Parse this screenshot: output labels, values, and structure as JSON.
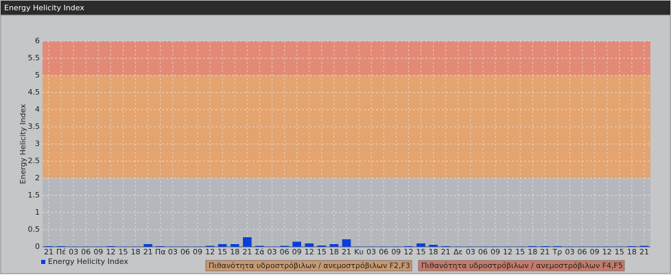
{
  "chart_data": {
    "type": "bar",
    "title": "Energy Helicity Index",
    "y_label": "Energy Helicity Index",
    "categories": [
      "21",
      "Πέ",
      "03",
      "06",
      "09",
      "12",
      "15",
      "18",
      "21",
      "Πα",
      "03",
      "06",
      "09",
      "12",
      "15",
      "18",
      "21",
      "Σά",
      "03",
      "06",
      "09",
      "12",
      "15",
      "18",
      "21",
      "Κυ",
      "03",
      "06",
      "09",
      "12",
      "15",
      "18",
      "21",
      "Δε",
      "03",
      "06",
      "09",
      "12",
      "15",
      "18",
      "21",
      "Τρ",
      "03",
      "06",
      "09",
      "12",
      "15",
      "18",
      "21"
    ],
    "series": [
      {
        "name": "Energy Helicity Index",
        "color": "#0a3fd6",
        "values": [
          0.02,
          0.02,
          0.01,
          0.01,
          0.01,
          0.02,
          0.01,
          0.01,
          0.08,
          0.02,
          0.01,
          0.01,
          0.01,
          0.03,
          0.08,
          0.08,
          0.28,
          0.03,
          0.01,
          0.03,
          0.15,
          0.1,
          0.04,
          0.08,
          0.22,
          0.01,
          0.01,
          0.01,
          0.01,
          0.02,
          0.1,
          0.06,
          0.02,
          0.01,
          0.01,
          0.01,
          0.01,
          0.01,
          0.01,
          0.02,
          0.02,
          0.02,
          0.01,
          0.01,
          0.01,
          0.01,
          0.01,
          0.02,
          0.03
        ]
      }
    ],
    "bands": [
      {
        "from": 2,
        "to": 5,
        "color": "#e3a46f",
        "label": "Πιθανότητα υδροστρόβιλων / ανεμοστρόβιλων F2,F3"
      },
      {
        "from": 5,
        "to": 6,
        "color": "#e38a76",
        "label": "Πιθανότητα υδροστρόβιλων / ανεμοστρόβιλων F4,F5"
      }
    ],
    "ylim": [
      0,
      6
    ],
    "yticks": [
      0,
      {
        "value": 0.5,
        "label": "0.5"
      },
      1,
      {
        "value": 1.5,
        "label": "1.5"
      },
      2,
      {
        "value": 2.5,
        "label": "2.5"
      },
      3,
      {
        "value": 3.5,
        "label": "3.5"
      },
      4,
      {
        "value": 4.5,
        "label": "4.5"
      },
      5,
      {
        "value": 5.5,
        "label": "5.5"
      },
      6
    ],
    "grid": true
  }
}
